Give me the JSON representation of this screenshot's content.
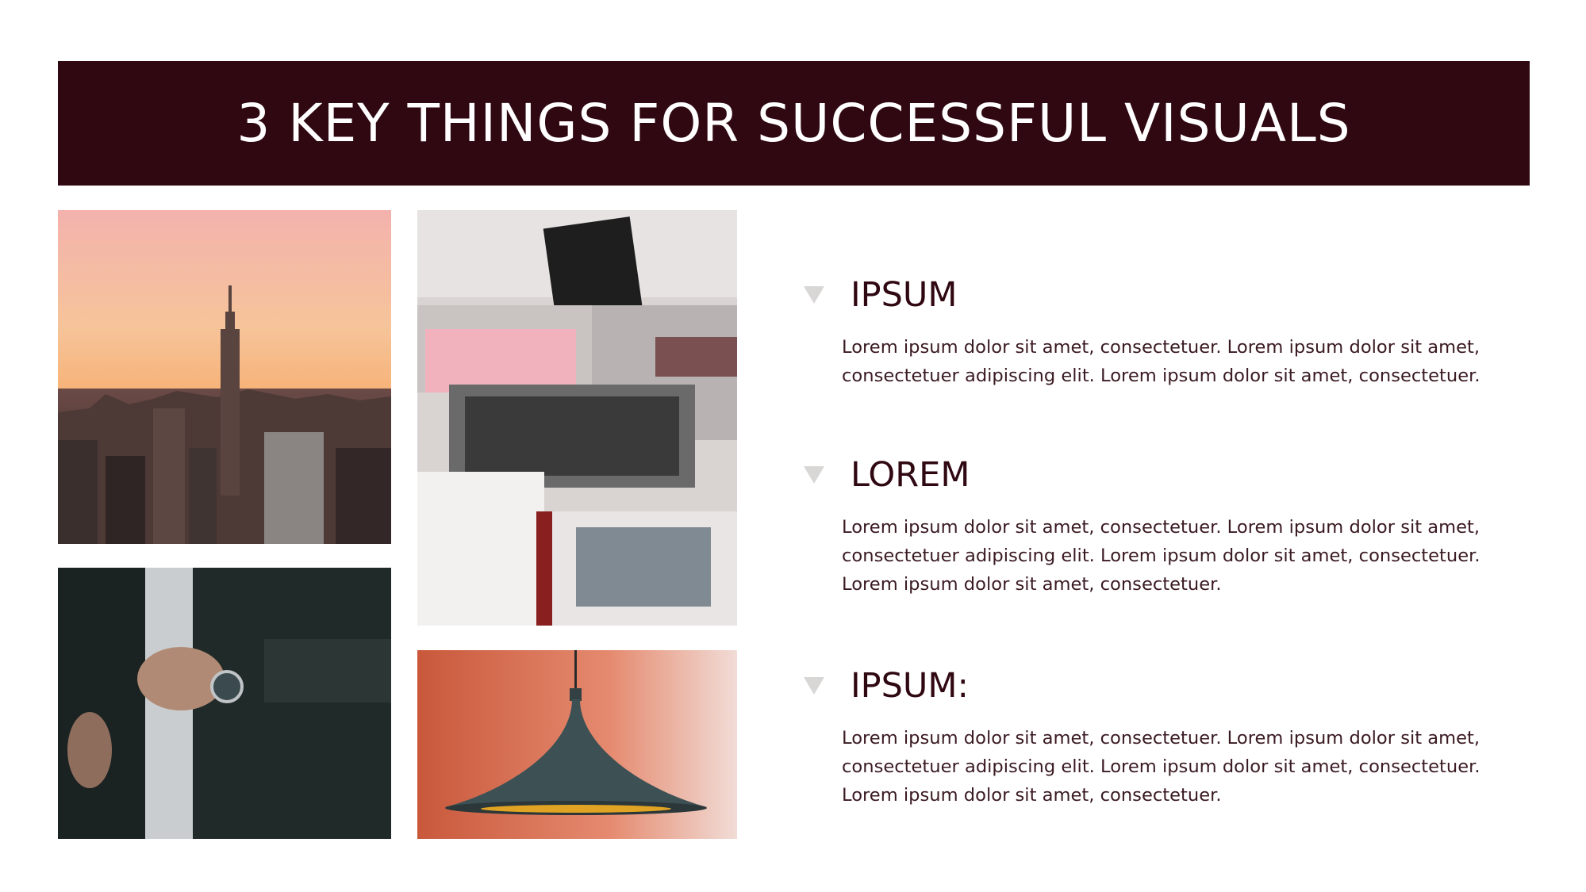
{
  "title": "3 KEY THINGS FOR SUCCESSFUL VISUALS",
  "colors": {
    "title_bar": "#300812",
    "title_text": "#ffffff",
    "heading": "#300812",
    "body": "#3a1a22",
    "arrow": "#d9d6d6"
  },
  "photos": {
    "city": "city-skyline-photo",
    "magazines": "magazine-rack-photo",
    "watch": "wristwatch-photo",
    "lamp": "pendant-lamp-photo"
  },
  "items": [
    {
      "icon": "triangle-down-icon",
      "heading": "IPSUM",
      "lines": [
        "Lorem ipsum dolor sit amet, consectetuer. Lorem ipsum dolor sit amet,",
        "consectetuer adipiscing elit. Lorem ipsum dolor sit amet, consectetuer."
      ]
    },
    {
      "icon": "triangle-down-icon",
      "heading": "LOREM",
      "lines": [
        "Lorem ipsum dolor sit amet, consectetuer. Lorem ipsum dolor sit amet,",
        "consectetuer adipiscing elit. Lorem ipsum dolor sit amet, consectetuer.",
        "Lorem ipsum dolor sit amet, consectetuer."
      ]
    },
    {
      "icon": "triangle-down-icon",
      "heading": "IPSUM:",
      "lines": [
        "Lorem ipsum dolor sit amet, consectetuer. Lorem ipsum dolor sit amet,",
        "consectetuer adipiscing elit. Lorem ipsum dolor sit amet, consectetuer.",
        "Lorem ipsum dolor sit amet, consectetuer."
      ]
    }
  ]
}
